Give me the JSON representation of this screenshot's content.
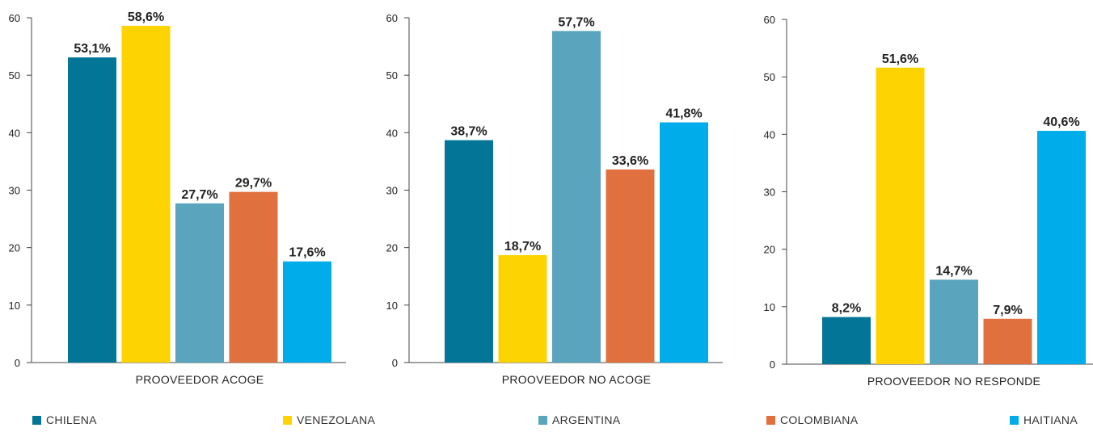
{
  "chart_data": [
    {
      "type": "bar",
      "title": "",
      "xlabel": "PROOVEEDOR ACOGE",
      "ylabel": "",
      "ylim": [
        0,
        60
      ],
      "yticks": [
        0,
        10,
        20,
        30,
        40,
        50,
        60
      ],
      "grid": false,
      "series": [
        {
          "name": "CHILENA",
          "values": [
            53.1
          ],
          "label": "53,1%"
        },
        {
          "name": "VENEZOLANA",
          "values": [
            58.6
          ],
          "label": "58,6%"
        },
        {
          "name": "ARGENTINA",
          "values": [
            27.7
          ],
          "label": "27,7%"
        },
        {
          "name": "COLOMBIANA",
          "values": [
            29.7
          ],
          "label": "29,7%"
        },
        {
          "name": "HAITIANA",
          "values": [
            17.6
          ],
          "label": "17,6%"
        }
      ]
    },
    {
      "type": "bar",
      "title": "",
      "xlabel": "PROOVEEDOR NO ACOGE",
      "ylabel": "",
      "ylim": [
        0,
        60
      ],
      "yticks": [
        0,
        10,
        20,
        30,
        40,
        50,
        60
      ],
      "grid": false,
      "series": [
        {
          "name": "CHILENA",
          "values": [
            38.7
          ],
          "label": "38,7%"
        },
        {
          "name": "VENEZOLANA",
          "values": [
            18.7
          ],
          "label": "18,7%"
        },
        {
          "name": "ARGENTINA",
          "values": [
            57.7
          ],
          "label": "57,7%"
        },
        {
          "name": "COLOMBIANA",
          "values": [
            33.6
          ],
          "label": "33,6%"
        },
        {
          "name": "HAITIANA",
          "values": [
            41.8
          ],
          "label": "41,8%"
        }
      ]
    },
    {
      "type": "bar",
      "title": "",
      "xlabel": "PROOVEEDOR NO RESPONDE",
      "ylabel": "",
      "ylim": [
        0,
        60
      ],
      "yticks": [
        0,
        10,
        20,
        30,
        40,
        50,
        60
      ],
      "grid": false,
      "series": [
        {
          "name": "CHILENA",
          "values": [
            8.2
          ],
          "label": "8,2%"
        },
        {
          "name": "VENEZOLANA",
          "values": [
            51.6
          ],
          "label": "51,6%"
        },
        {
          "name": "ARGENTINA",
          "values": [
            14.7
          ],
          "label": "14,7%"
        },
        {
          "name": "COLOMBIANA",
          "values": [
            7.9
          ],
          "label": "7,9%"
        },
        {
          "name": "HAITIANA",
          "values": [
            40.6
          ],
          "label": "40,6%"
        }
      ]
    }
  ],
  "legend": {
    "placement": "bottom",
    "items": [
      {
        "label": "CHILENA",
        "color": "#037597"
      },
      {
        "label": "VENEZOLANA",
        "color": "#fdd402"
      },
      {
        "label": "ARGENTINA",
        "color": "#5aa4bd"
      },
      {
        "label": "COLOMBIANA",
        "color": "#e0703e"
      },
      {
        "label": "HAITIANA",
        "color": "#00adea"
      }
    ]
  }
}
